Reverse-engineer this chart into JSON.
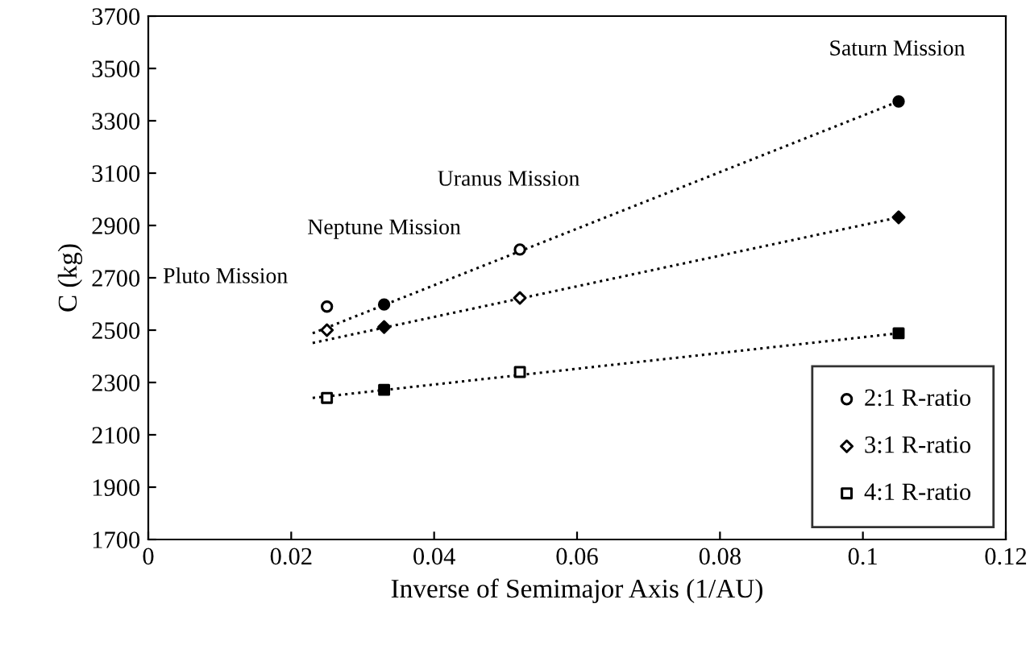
{
  "chart_data": {
    "type": "scatter",
    "xlabel": "Inverse of Semimajor Axis (1/AU)",
    "ylabel": "C (kg)",
    "xlim": [
      0,
      0.12
    ],
    "xticks": [
      0,
      0.02,
      0.04,
      0.06,
      0.08,
      0.1,
      0.12
    ],
    "ylim": [
      1700,
      3700
    ],
    "yticks": [
      1700,
      1900,
      2100,
      2300,
      2500,
      2700,
      2900,
      3100,
      3300,
      3500,
      3700
    ],
    "grid": false,
    "legend": "bottom right",
    "series": [
      {
        "name": "2:1 R-ratio",
        "marker": "circle",
        "color": "#000000",
        "colors": [
          "#ffffff",
          "#000000",
          "#ffffff",
          "#000000"
        ],
        "x": [
          0.025,
          0.033,
          0.052,
          0.105
        ],
        "values": [
          2590,
          2598,
          2808,
          3374
        ]
      },
      {
        "name": "3:1 R-ratio",
        "marker": "diamond",
        "color": "#000000",
        "colors": [
          "#ffffff",
          "#000000",
          "#ffffff",
          "#000000"
        ],
        "x": [
          0.025,
          0.033,
          0.052,
          0.105
        ],
        "values": [
          2500,
          2512,
          2623,
          2931
        ]
      },
      {
        "name": "4:1 R-ratio",
        "marker": "square",
        "color": "#000000",
        "colors": [
          "#ffffff",
          "#000000",
          "#ffffff",
          "#000000"
        ],
        "x": [
          0.025,
          0.033,
          0.052,
          0.105
        ],
        "values": [
          2241,
          2272,
          2340,
          2488
        ]
      },
      {
        "type": "line",
        "line_style": "dotted",
        "marker": "none",
        "color": "#000000",
        "x": [
          0.023,
          0.105
        ],
        "values": [
          2488,
          3374
        ]
      },
      {
        "type": "line",
        "line_style": "dotted",
        "marker": "none",
        "color": "#000000",
        "x": [
          0.023,
          0.105
        ],
        "values": [
          2451,
          2931
        ]
      },
      {
        "type": "line",
        "line_style": "dotted",
        "marker": "none",
        "color": "#000000",
        "x": [
          0.023,
          0.105
        ],
        "values": [
          2241,
          2488
        ]
      }
    ],
    "annotations": [
      {
        "text": "Pluto Mission",
        "x": 0.025,
        "y": 2590
      },
      {
        "text": "Neptune Mission",
        "x": 0.033,
        "y": 2598
      },
      {
        "text": "Uranus Mission",
        "x": 0.052,
        "y": 2808
      },
      {
        "text": "Saturn Mission",
        "x": 0.105,
        "y": 3374
      }
    ]
  }
}
